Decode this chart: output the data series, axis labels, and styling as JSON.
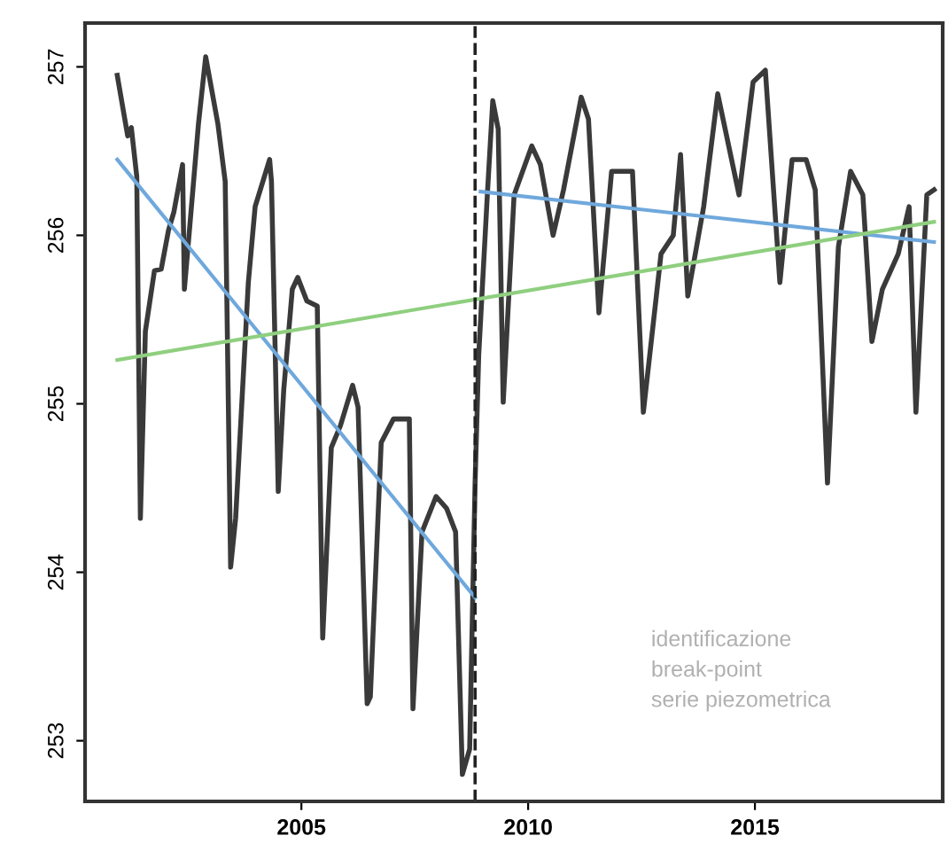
{
  "chart_data": {
    "type": "line",
    "xlim": [
      2000.23,
      2019.14
    ],
    "ylim": [
      252.64,
      257.26
    ],
    "xticks": [
      2005,
      2010,
      2015
    ],
    "yticks": [
      253,
      254,
      255,
      256,
      257
    ],
    "grid": false,
    "legend": false,
    "series": [
      {
        "color": "#3a3a3a",
        "x": [
          2000.94,
          2001.17,
          2001.25,
          2001.37,
          2001.45,
          2001.56,
          2001.76,
          2001.91,
          2002.07,
          2002.19,
          2002.38,
          2002.42,
          2002.5,
          2002.73,
          2002.89,
          2003.16,
          2003.32,
          2003.44,
          2003.55,
          2003.83,
          2003.98,
          2004.3,
          2004.34,
          2004.49,
          2004.61,
          2004.8,
          2004.92,
          2005.12,
          2005.35,
          2005.47,
          2005.66,
          2005.86,
          2006.13,
          2006.25,
          2006.45,
          2006.52,
          2006.76,
          2007.03,
          2007.27,
          2007.38,
          2007.46,
          2007.66,
          2007.97,
          2008.2,
          2008.4,
          2008.55,
          2008.71,
          2008.83,
          2008.91,
          2009.1,
          2009.22,
          2009.34,
          2009.45,
          2009.69,
          2010.08,
          2010.27,
          2010.55,
          2010.78,
          2011.17,
          2011.33,
          2011.56,
          2011.84,
          2012.3,
          2012.54,
          2012.93,
          2013.2,
          2013.36,
          2013.52,
          2013.87,
          2014.18,
          2014.65,
          2014.96,
          2015.23,
          2015.55,
          2015.82,
          2016.13,
          2016.33,
          2016.6,
          2016.84,
          2017.11,
          2017.38,
          2017.58,
          2017.81,
          2018.16,
          2018.4,
          2018.55,
          2018.79,
          2018.95
        ],
        "values": [
          256.95,
          256.59,
          256.64,
          256.35,
          254.32,
          255.43,
          255.79,
          255.8,
          256.03,
          256.14,
          256.42,
          255.68,
          255.93,
          256.66,
          257.06,
          256.66,
          256.32,
          254.03,
          254.32,
          255.72,
          256.17,
          256.45,
          256.32,
          254.48,
          255.08,
          255.68,
          255.75,
          255.61,
          255.58,
          253.61,
          254.74,
          254.87,
          255.11,
          254.98,
          253.22,
          253.26,
          254.77,
          254.91,
          254.91,
          254.91,
          253.19,
          254.24,
          254.45,
          254.38,
          254.24,
          252.8,
          252.95,
          254.53,
          255.29,
          256.24,
          256.8,
          256.63,
          255.01,
          256.24,
          256.53,
          256.42,
          256.0,
          256.27,
          256.82,
          256.69,
          255.54,
          256.38,
          256.38,
          254.95,
          255.89,
          256.0,
          256.48,
          255.64,
          256.17,
          256.84,
          256.24,
          256.91,
          256.98,
          255.72,
          256.45,
          256.45,
          256.27,
          254.53,
          255.93,
          256.38,
          256.24,
          255.37,
          255.68,
          255.89,
          256.17,
          254.95,
          256.24,
          256.27
        ]
      },
      {
        "color": "#6fa8dc",
        "x": [
          2000.94,
          2008.83
        ],
        "values": [
          256.45,
          253.85
        ]
      },
      {
        "color": "#6fa8dc",
        "x": [
          2008.95,
          2018.95
        ],
        "values": [
          256.26,
          255.96
        ]
      },
      {
        "color": "#8fcf7f",
        "x": [
          2000.94,
          2018.95
        ],
        "values": [
          255.26,
          256.08
        ]
      }
    ],
    "ref_lines": [
      {
        "axis": "x",
        "value": 2008.83,
        "color": "#222222",
        "line_style": "dashed"
      }
    ],
    "annotations": [
      "identificazione\nbreak-point\nserie piezometrica"
    ]
  }
}
